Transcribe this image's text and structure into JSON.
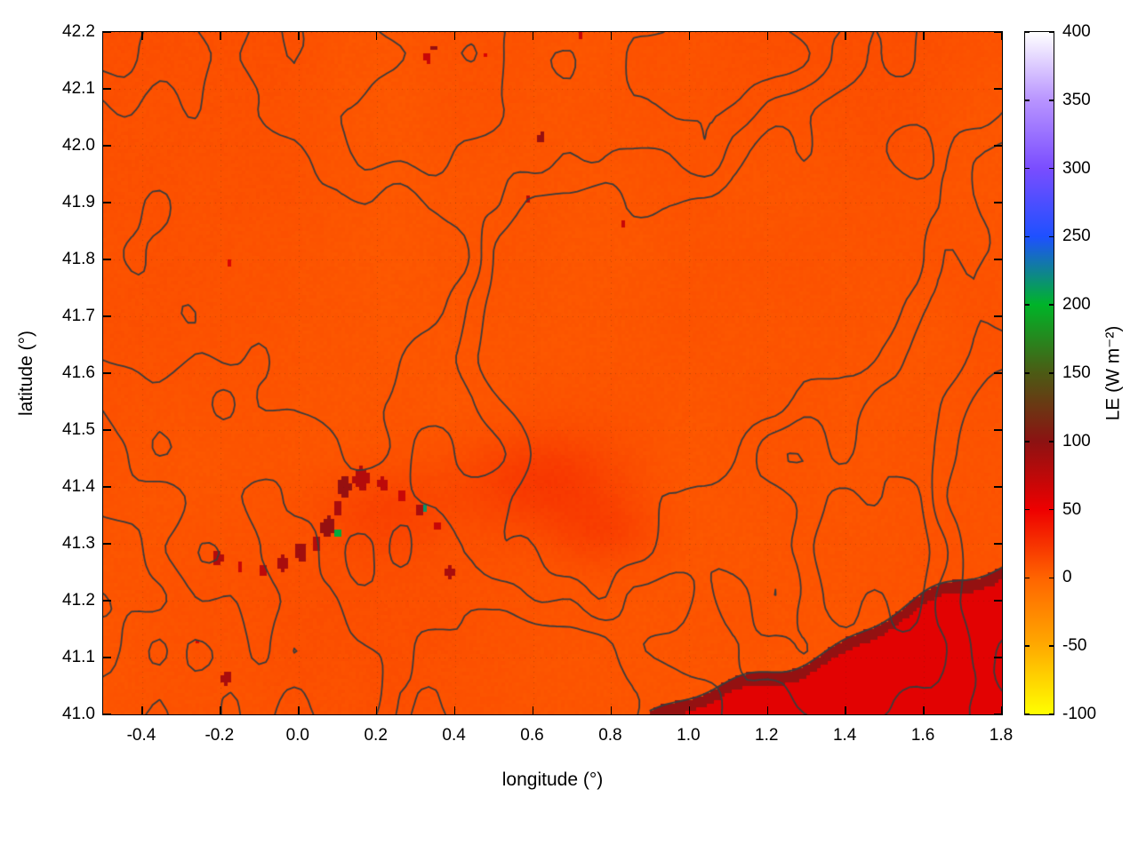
{
  "chart_data": {
    "type": "heatmap",
    "title": "",
    "xlabel": "longitude (°)",
    "ylabel": "latitude (°)",
    "colorbar_label": "LE (W m⁻²)",
    "xlim": [
      -0.5,
      1.8
    ],
    "ylim": [
      41.0,
      42.2
    ],
    "x_ticks": [
      "-0.4",
      "-0.2",
      "0.0",
      "0.2",
      "0.4",
      "0.6",
      "0.8",
      "1.0",
      "1.2",
      "1.4",
      "1.6",
      "1.8"
    ],
    "y_ticks": [
      "41.0",
      "41.1",
      "41.2",
      "41.3",
      "41.4",
      "41.5",
      "41.6",
      "41.7",
      "41.8",
      "41.9",
      "42.0",
      "42.1",
      "42.2"
    ],
    "grid": "faint dotted lines at major ticks",
    "legend_position": "colorbar right",
    "colorbar": {
      "min": -100,
      "max": 400,
      "ticks": [
        "-100",
        "-50",
        "0",
        "50",
        "100",
        "150",
        "200",
        "250",
        "300",
        "350",
        "400"
      ],
      "palette": [
        [
          -100,
          "#ffff00"
        ],
        [
          -50,
          "#ffaa00"
        ],
        [
          0,
          "#ff6400"
        ],
        [
          50,
          "#ee0000"
        ],
        [
          100,
          "#8c1212"
        ],
        [
          150,
          "#4c5a14"
        ],
        [
          200,
          "#00b428"
        ],
        [
          250,
          "#1e50ff"
        ],
        [
          300,
          "#7a4dff"
        ],
        [
          350,
          "#b894ff"
        ],
        [
          400,
          "#ffffff"
        ]
      ]
    },
    "field": {
      "units": "W m-2",
      "background_value_range": [
        5,
        14
      ],
      "corner_region": {
        "description": "higher-LE area in lower-right corner with dark-red edge band",
        "edge_from": [
          0.9,
          41.0
        ],
        "edge_to": [
          1.8,
          41.265
        ],
        "value": 56,
        "edge_band_value": 96,
        "edge_band_width_deg": 0.022
      },
      "warm_patches": [
        [
          0.62,
          41.41,
          0.2,
          0.08,
          14
        ],
        [
          0.22,
          41.36,
          0.16,
          0.07,
          8
        ],
        [
          0.78,
          41.32,
          0.14,
          0.06,
          9
        ]
      ],
      "hotspots": [
        [
          -0.205,
          41.275,
          0.013,
          80
        ],
        [
          -0.15,
          41.26,
          0.009,
          70
        ],
        [
          -0.09,
          41.255,
          0.011,
          75
        ],
        [
          -0.04,
          41.265,
          0.014,
          85
        ],
        [
          0.005,
          41.285,
          0.016,
          90
        ],
        [
          0.045,
          41.3,
          0.012,
          80
        ],
        [
          0.075,
          41.33,
          0.018,
          95
        ],
        [
          0.1,
          41.365,
          0.013,
          85
        ],
        [
          0.115,
          41.4,
          0.018,
          95
        ],
        [
          0.16,
          41.415,
          0.02,
          80
        ],
        [
          0.215,
          41.405,
          0.013,
          75
        ],
        [
          0.265,
          41.385,
          0.01,
          70
        ],
        [
          0.31,
          41.36,
          0.012,
          85
        ],
        [
          0.355,
          41.33,
          0.009,
          70
        ],
        [
          0.385,
          41.25,
          0.012,
          85
        ],
        [
          0.1,
          41.318,
          0.006,
          205
        ],
        [
          0.325,
          41.362,
          0.006,
          215
        ],
        [
          0.33,
          42.155,
          0.01,
          70
        ],
        [
          0.345,
          42.172,
          0.006,
          95
        ],
        [
          0.62,
          42.015,
          0.009,
          95
        ],
        [
          0.627,
          42.03,
          0.004,
          195
        ],
        [
          0.585,
          41.905,
          0.006,
          80
        ],
        [
          0.835,
          41.862,
          0.005,
          70
        ],
        [
          0.72,
          42.193,
          0.006,
          70
        ],
        [
          0.48,
          42.16,
          0.005,
          60
        ],
        [
          -0.185,
          41.065,
          0.012,
          85
        ],
        [
          -0.255,
          41.13,
          0.005,
          60
        ],
        [
          0.3,
          41.205,
          0.004,
          60
        ],
        [
          -0.175,
          41.795,
          0.005,
          60
        ]
      ]
    },
    "contours": {
      "color": "#3c3c3c",
      "line_width": 1.8,
      "levels": [
        0.4,
        0.52,
        0.64
      ],
      "frequency": 2.6
    }
  }
}
